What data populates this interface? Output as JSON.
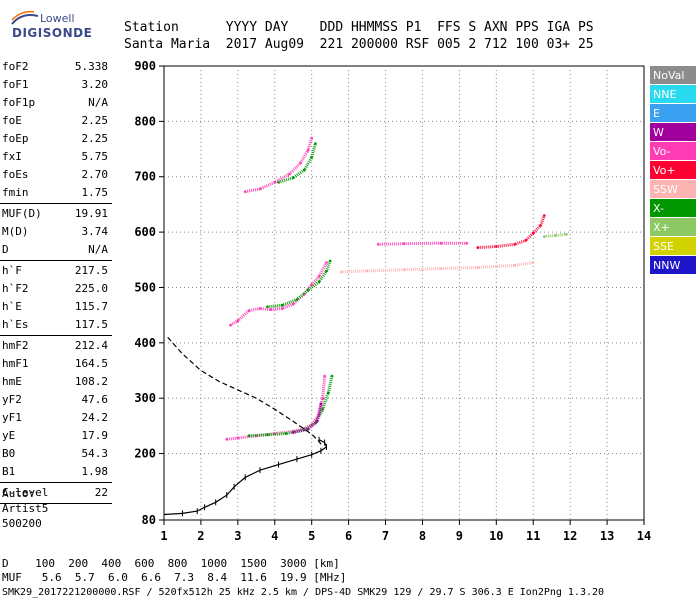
{
  "logo": {
    "line1": "Lowell",
    "line2": "DIGISONDE"
  },
  "header": {
    "row1": "Station      YYYY DAY    DDD HHMMSS P1  FFS S AXN PPS IGA PS",
    "row2": "Santa Maria  2017 Aug09  221 200000 RSF 005 2 712 100 03+ 25"
  },
  "params": [
    {
      "name": "foF2",
      "value": "5.338"
    },
    {
      "name": "foF1",
      "value": "3.20"
    },
    {
      "name": "foF1p",
      "value": "N/A"
    },
    {
      "name": "foE",
      "value": "2.25"
    },
    {
      "name": "foEp",
      "value": "2.25"
    },
    {
      "name": "fxI",
      "value": "5.75"
    },
    {
      "name": "foEs",
      "value": "2.70"
    },
    {
      "name": "fmin",
      "value": "1.75"
    },
    {
      "sep": true
    },
    {
      "name": "MUF(D)",
      "value": "19.91"
    },
    {
      "name": "M(D)",
      "value": "3.74"
    },
    {
      "name": "D",
      "value": "N/A"
    },
    {
      "sep": true
    },
    {
      "name": "h`F",
      "value": "217.5"
    },
    {
      "name": "h`F2",
      "value": "225.0"
    },
    {
      "name": "h`E",
      "value": "115.7"
    },
    {
      "name": "h`Es",
      "value": "117.5"
    },
    {
      "sep": true
    },
    {
      "name": "hmF2",
      "value": "212.4"
    },
    {
      "name": "hmF1",
      "value": "164.5"
    },
    {
      "name": "hmE",
      "value": "108.2"
    },
    {
      "name": "yF2",
      "value": "47.6"
    },
    {
      "name": "yF1",
      "value": "24.2"
    },
    {
      "name": "yE",
      "value": "17.9"
    },
    {
      "name": "B0",
      "value": "54.3"
    },
    {
      "name": "B1",
      "value": "1.98"
    },
    {
      "sep": true
    },
    {
      "name": "C-level",
      "value": "22"
    },
    {
      "sep": true
    }
  ],
  "auto": {
    "line1": "Auto:",
    "line2": "Artist5",
    "line3": "500200"
  },
  "legend": [
    {
      "label": "NoVal",
      "color": "#8c8c8c"
    },
    {
      "label": "NNE",
      "color": "#29d9f0"
    },
    {
      "label": "E",
      "color": "#3aa0f0"
    },
    {
      "label": "W",
      "color": "#a0009c"
    },
    {
      "label": "Vo-",
      "color": "#ff3cb4"
    },
    {
      "label": "Vo+",
      "color": "#ff0033"
    },
    {
      "label": "SSW",
      "color": "#ffb4b4"
    },
    {
      "label": "X-",
      "color": "#009600"
    },
    {
      "label": "X+",
      "color": "#8cc864"
    },
    {
      "label": "SSE",
      "color": "#d2d200"
    },
    {
      "label": "NNW",
      "color": "#1e14c8"
    }
  ],
  "chart_data": {
    "type": "scatter",
    "xlim": [
      1,
      14
    ],
    "ylim": [
      80,
      900
    ],
    "x_ticks": [
      1,
      2,
      3,
      4,
      5,
      6,
      7,
      8,
      9,
      10,
      11,
      12,
      13,
      14
    ],
    "y_ticks": [
      80,
      200,
      300,
      400,
      500,
      600,
      700,
      800,
      900
    ],
    "grid": "dotted",
    "profile_dashed": [
      [
        1.1,
        410
      ],
      [
        1.5,
        380
      ],
      [
        2,
        350
      ],
      [
        2.5,
        330
      ],
      [
        3,
        315
      ],
      [
        3.5,
        300
      ],
      [
        4,
        280
      ],
      [
        4.5,
        258
      ],
      [
        5,
        235
      ],
      [
        5.2,
        222
      ],
      [
        5.3,
        212
      ]
    ],
    "profile_solid": [
      [
        1.0,
        90
      ],
      [
        1.5,
        92
      ],
      [
        1.9,
        96
      ],
      [
        2.1,
        103
      ],
      [
        2.4,
        112
      ],
      [
        2.7,
        125
      ],
      [
        2.9,
        140
      ],
      [
        3.2,
        157
      ],
      [
        3.6,
        170
      ],
      [
        4.1,
        180
      ],
      [
        4.6,
        190
      ],
      [
        5.0,
        198
      ],
      [
        5.25,
        205
      ],
      [
        5.4,
        212
      ],
      [
        5.35,
        220
      ],
      [
        5.2,
        225
      ]
    ],
    "traces": [
      {
        "color": "#ff3cb4",
        "points": [
          [
            2.7,
            226
          ],
          [
            3.0,
            228
          ],
          [
            3.5,
            232
          ],
          [
            4.0,
            236
          ],
          [
            4.5,
            240
          ],
          [
            4.8,
            245
          ],
          [
            5.0,
            252
          ],
          [
            5.2,
            270
          ],
          [
            5.3,
            300
          ],
          [
            5.35,
            340
          ]
        ]
      },
      {
        "color": "#009600",
        "points": [
          [
            3.3,
            232
          ],
          [
            3.8,
            234
          ],
          [
            4.3,
            236
          ],
          [
            4.8,
            243
          ],
          [
            5.1,
            255
          ],
          [
            5.3,
            280
          ],
          [
            5.45,
            310
          ],
          [
            5.55,
            340
          ]
        ]
      },
      {
        "color": "#a0009c",
        "points": [
          [
            4.5,
            238
          ],
          [
            4.9,
            244
          ],
          [
            5.15,
            258
          ],
          [
            5.25,
            290
          ]
        ]
      },
      {
        "color": "#ff3cb4",
        "points": [
          [
            2.8,
            432
          ],
          [
            3.0,
            440
          ],
          [
            3.3,
            458
          ],
          [
            3.6,
            462
          ],
          [
            3.9,
            460
          ],
          [
            4.2,
            462
          ],
          [
            4.5,
            470
          ],
          [
            4.8,
            488
          ],
          [
            5.0,
            505
          ],
          [
            5.2,
            520
          ],
          [
            5.4,
            545
          ]
        ]
      },
      {
        "color": "#009600",
        "points": [
          [
            3.8,
            465
          ],
          [
            4.2,
            468
          ],
          [
            4.6,
            478
          ],
          [
            4.9,
            495
          ],
          [
            5.2,
            510
          ],
          [
            5.4,
            530
          ],
          [
            5.5,
            548
          ]
        ]
      },
      {
        "color": "#ff3cb4",
        "points": [
          [
            3.2,
            673
          ],
          [
            3.6,
            678
          ],
          [
            4.0,
            690
          ],
          [
            4.4,
            705
          ],
          [
            4.7,
            725
          ],
          [
            4.9,
            748
          ],
          [
            5.0,
            770
          ]
        ]
      },
      {
        "color": "#009600",
        "points": [
          [
            4.1,
            690
          ],
          [
            4.5,
            698
          ],
          [
            4.8,
            712
          ],
          [
            5.0,
            735
          ],
          [
            5.1,
            760
          ]
        ]
      },
      {
        "color": "#ff0033",
        "points": [
          [
            9.5,
            572
          ],
          [
            10.0,
            574
          ],
          [
            10.5,
            578
          ],
          [
            10.8,
            585
          ],
          [
            11.0,
            598
          ],
          [
            11.2,
            612
          ],
          [
            11.3,
            630
          ]
        ]
      },
      {
        "color": "#ffb4b4",
        "points": [
          [
            5.8,
            528
          ],
          [
            6.5,
            530
          ],
          [
            7.5,
            532
          ],
          [
            8.5,
            534
          ],
          [
            9.5,
            536
          ],
          [
            10.5,
            540
          ],
          [
            11.0,
            545
          ]
        ]
      },
      {
        "color": "#ff3cb4",
        "points": [
          [
            6.8,
            578
          ],
          [
            7.5,
            579
          ],
          [
            8.5,
            580
          ],
          [
            9.2,
            580
          ]
        ]
      },
      {
        "color": "#8cc864",
        "points": [
          [
            11.3,
            592
          ],
          [
            11.6,
            594
          ],
          [
            11.9,
            596
          ]
        ]
      }
    ]
  },
  "bottom": {
    "row1": "D    100  200  400  600  800  1000  1500  3000 [km]",
    "row2": "MUF   5.6  5.7  6.0  6.6  7.3  8.4  11.6  19.9 [MHz]"
  },
  "footer": "SMK29_2017221200000.RSF / 520fx512h 25 kHz 2.5 km / DPS-4D SMK29 129 / 29.7 S 306.3 E Ion2Png 1.3.20"
}
